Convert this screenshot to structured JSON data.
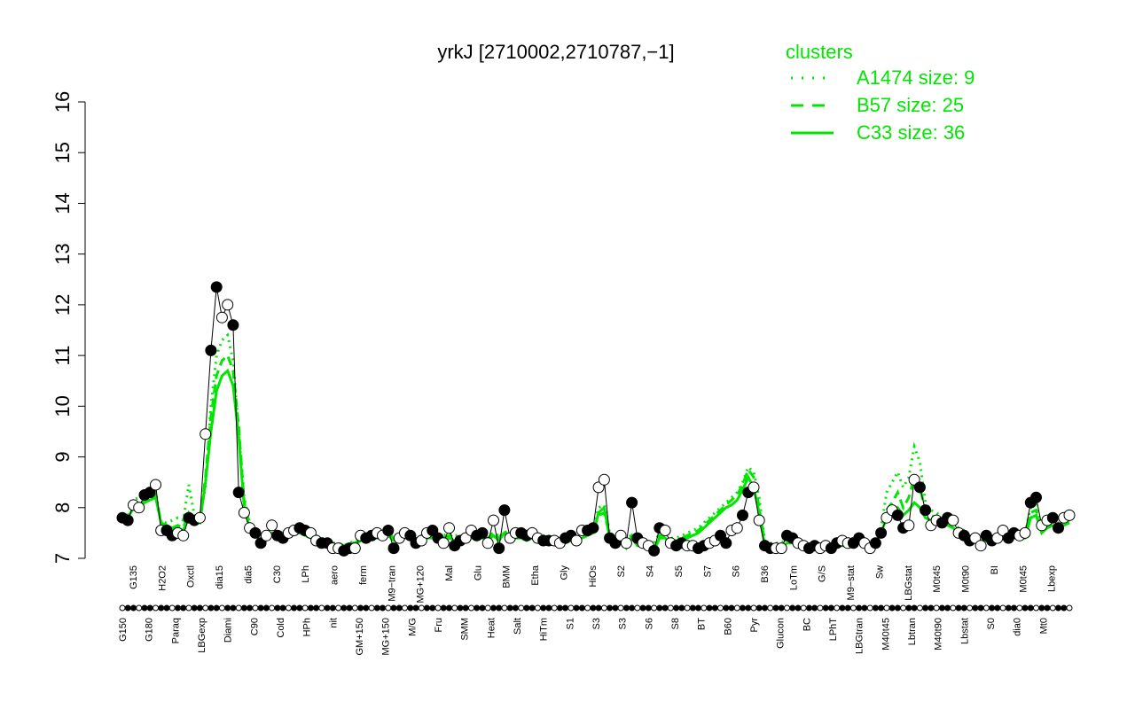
{
  "chart_data": {
    "type": "line",
    "title": "yrkJ [2710002,2710787,−1]",
    "ylim": [
      7,
      16
    ],
    "yticks": [
      "7",
      "8",
      "9",
      "10",
      "11",
      "12",
      "13",
      "14",
      "15",
      "16"
    ],
    "xlabels_top": [
      "G135",
      "H2O2",
      "Oxctl",
      "dia15",
      "dia5",
      "C30",
      "LPh",
      "aero",
      "ferm",
      "M9−tran",
      "MG+120",
      "Mal",
      "Glu",
      "BMM",
      "Etha",
      "Gly",
      "HiOs",
      "S2",
      "S4",
      "S5",
      "S7",
      "S6",
      "B36",
      "LoTm",
      "G/S",
      "M9−stat",
      "Sw",
      "LBGstat",
      "M0t45",
      "M0t90",
      "BI",
      "M0t45",
      "Lbexp"
    ],
    "xlabels_bottom": [
      "G150",
      "G180",
      "Paraq",
      "LBGexp",
      "Diami",
      "C90",
      "Cold",
      "HPh",
      "nit",
      "GM+150",
      "MG+150",
      "M/G",
      "Fru",
      "SMM",
      "Heat",
      "Salt",
      "HiTm",
      "S1",
      "S3",
      "S3",
      "S6",
      "S8",
      "BT",
      "B60",
      "Pyr",
      "Glucon",
      "BC",
      "LPhT",
      "LBGtran",
      "M40t45",
      "Lbtran",
      "M40t90",
      "Lbstat",
      "S0",
      "dia0",
      "Mt0"
    ],
    "points": [
      7.8,
      7.75,
      8.05,
      8.0,
      8.25,
      8.3,
      8.45,
      7.55,
      7.55,
      7.45,
      7.5,
      7.45,
      7.8,
      7.75,
      7.8,
      9.45,
      11.1,
      12.35,
      11.75,
      12.0,
      11.6,
      8.3,
      7.9,
      7.6,
      7.5,
      7.3,
      7.45,
      7.65,
      7.45,
      7.4,
      7.5,
      7.55,
      7.6,
      7.55,
      7.5,
      7.35,
      7.3,
      7.3,
      7.2,
      7.2,
      7.15,
      7.2,
      7.2,
      7.45,
      7.4,
      7.45,
      7.5,
      7.45,
      7.55,
      7.2,
      7.4,
      7.5,
      7.45,
      7.3,
      7.35,
      7.5,
      7.55,
      7.4,
      7.3,
      7.6,
      7.25,
      7.35,
      7.4,
      7.55,
      7.45,
      7.5,
      7.3,
      7.75,
      7.2,
      7.95,
      7.4,
      7.5,
      7.5,
      7.45,
      7.5,
      7.4,
      7.35,
      7.35,
      7.35,
      7.3,
      7.4,
      7.45,
      7.35,
      7.55,
      7.55,
      7.6,
      8.4,
      8.55,
      7.4,
      7.3,
      7.45,
      7.3,
      8.1,
      7.4,
      7.3,
      7.25,
      7.15,
      7.6,
      7.55,
      7.3,
      7.25,
      7.3,
      7.25,
      7.25,
      7.2,
      7.25,
      7.3,
      7.35,
      7.45,
      7.3,
      7.55,
      7.6,
      7.85,
      8.3,
      8.4,
      7.75,
      7.25,
      7.2,
      7.2,
      7.2,
      7.45,
      7.4,
      7.3,
      7.25,
      7.2,
      7.25,
      7.2,
      7.25,
      7.2,
      7.3,
      7.35,
      7.3,
      7.3,
      7.4,
      7.3,
      7.2,
      7.3,
      7.5,
      7.8,
      7.95,
      7.85,
      7.6,
      7.65,
      8.55,
      8.4,
      7.95,
      7.65,
      7.75,
      7.7,
      7.8,
      7.75,
      7.5,
      7.45,
      7.35,
      7.4,
      7.25,
      7.45,
      7.35,
      7.4,
      7.55,
      7.4,
      7.5,
      7.45,
      7.5,
      8.1,
      8.2,
      7.65,
      7.75,
      7.8,
      7.6,
      7.8,
      7.85
    ],
    "series": [
      {
        "name": "A1474 size: 9",
        "style": "dotted",
        "values": [
          7.8,
          7.85,
          8.15,
          8.2,
          8.25,
          8.3,
          8.3,
          7.7,
          7.7,
          7.75,
          7.8,
          7.75,
          8.45,
          7.85,
          7.8,
          8.4,
          10.0,
          11.0,
          11.3,
          11.4,
          10.9,
          9.5,
          8.2,
          7.7,
          7.5,
          7.45,
          7.45,
          7.5,
          7.55,
          7.5,
          7.5,
          7.55,
          7.55,
          7.5,
          7.45,
          7.45,
          7.4,
          7.35,
          7.3,
          7.3,
          7.25,
          7.3,
          7.35,
          7.45,
          7.45,
          7.45,
          7.5,
          7.5,
          7.5,
          7.45,
          7.45,
          7.5,
          7.5,
          7.45,
          7.45,
          7.5,
          7.5,
          7.45,
          7.45,
          7.5,
          7.45,
          7.45,
          7.45,
          7.5,
          7.5,
          7.5,
          7.45,
          7.5,
          7.45,
          7.5,
          7.45,
          7.5,
          7.5,
          7.45,
          7.5,
          7.45,
          7.45,
          7.4,
          7.4,
          7.4,
          7.4,
          7.45,
          7.45,
          7.5,
          7.55,
          7.6,
          8.0,
          8.05,
          7.5,
          7.4,
          7.4,
          7.3,
          7.5,
          7.35,
          7.35,
          7.3,
          7.3,
          7.5,
          7.5,
          7.4,
          7.4,
          7.45,
          7.5,
          7.55,
          7.6,
          7.7,
          7.8,
          7.9,
          8.0,
          8.1,
          8.2,
          8.3,
          8.5,
          8.8,
          8.7,
          8.2,
          7.35,
          7.3,
          7.3,
          7.3,
          7.4,
          7.4,
          7.35,
          7.3,
          7.3,
          7.3,
          7.25,
          7.3,
          7.3,
          7.35,
          7.35,
          7.35,
          7.4,
          7.4,
          7.35,
          7.3,
          7.4,
          7.6,
          8.3,
          8.5,
          8.7,
          8.4,
          8.6,
          9.2,
          8.9,
          8.1,
          7.95,
          7.9,
          7.8,
          7.75,
          7.7,
          7.6,
          7.55,
          7.45,
          7.45,
          7.4,
          7.45,
          7.4,
          7.45,
          7.5,
          7.45,
          7.5,
          7.5,
          7.5,
          8.0,
          8.05,
          7.6,
          7.7,
          7.75,
          7.7,
          7.75,
          7.8
        ]
      },
      {
        "name": "B57 size: 25",
        "style": "dashed",
        "values": [
          7.8,
          7.8,
          8.05,
          8.05,
          8.15,
          8.2,
          8.25,
          7.7,
          7.65,
          7.6,
          7.65,
          7.6,
          7.9,
          7.8,
          7.75,
          8.6,
          9.8,
          10.6,
          10.9,
          11.0,
          10.7,
          9.6,
          8.1,
          7.65,
          7.5,
          7.45,
          7.45,
          7.5,
          7.5,
          7.45,
          7.5,
          7.5,
          7.55,
          7.5,
          7.45,
          7.4,
          7.35,
          7.35,
          7.3,
          7.3,
          7.25,
          7.3,
          7.3,
          7.4,
          7.45,
          7.45,
          7.45,
          7.45,
          7.5,
          7.4,
          7.4,
          7.45,
          7.45,
          7.4,
          7.4,
          7.45,
          7.45,
          7.4,
          7.4,
          7.45,
          7.4,
          7.4,
          7.4,
          7.45,
          7.45,
          7.45,
          7.4,
          7.5,
          7.4,
          7.55,
          7.4,
          7.45,
          7.45,
          7.4,
          7.45,
          7.4,
          7.4,
          7.35,
          7.35,
          7.35,
          7.35,
          7.4,
          7.4,
          7.45,
          7.5,
          7.55,
          7.85,
          7.9,
          7.45,
          7.35,
          7.35,
          7.25,
          7.45,
          7.3,
          7.3,
          7.25,
          7.2,
          7.45,
          7.45,
          7.35,
          7.35,
          7.4,
          7.45,
          7.5,
          7.55,
          7.65,
          7.75,
          7.85,
          7.95,
          8.05,
          8.15,
          8.25,
          8.45,
          8.75,
          8.6,
          8.0,
          7.3,
          7.25,
          7.25,
          7.25,
          7.35,
          7.35,
          7.3,
          7.25,
          7.25,
          7.25,
          7.2,
          7.25,
          7.25,
          7.3,
          7.3,
          7.3,
          7.35,
          7.35,
          7.3,
          7.25,
          7.35,
          7.55,
          7.95,
          8.1,
          8.3,
          8.0,
          8.2,
          8.6,
          8.4,
          7.95,
          7.85,
          7.8,
          7.75,
          7.7,
          7.65,
          7.55,
          7.5,
          7.4,
          7.4,
          7.35,
          7.4,
          7.35,
          7.4,
          7.45,
          7.4,
          7.45,
          7.45,
          7.45,
          7.9,
          7.95,
          7.55,
          7.65,
          7.7,
          7.65,
          7.7,
          7.75
        ]
      },
      {
        "name": "C33 size: 36",
        "style": "solid",
        "values": [
          7.8,
          7.8,
          8.0,
          8.0,
          8.1,
          8.15,
          8.2,
          7.7,
          7.65,
          7.6,
          7.6,
          7.55,
          7.8,
          7.75,
          7.7,
          8.5,
          9.5,
          10.3,
          10.6,
          10.7,
          10.4,
          9.4,
          8.0,
          7.6,
          7.5,
          7.45,
          7.45,
          7.5,
          7.5,
          7.45,
          7.5,
          7.5,
          7.5,
          7.45,
          7.4,
          7.35,
          7.3,
          7.3,
          7.25,
          7.25,
          7.2,
          7.25,
          7.25,
          7.35,
          7.4,
          7.4,
          7.4,
          7.4,
          7.45,
          7.35,
          7.35,
          7.4,
          7.4,
          7.35,
          7.35,
          7.4,
          7.4,
          7.35,
          7.35,
          7.4,
          7.35,
          7.35,
          7.35,
          7.4,
          7.4,
          7.4,
          7.35,
          7.45,
          7.35,
          7.5,
          7.35,
          7.4,
          7.4,
          7.35,
          7.4,
          7.35,
          7.35,
          7.3,
          7.3,
          7.3,
          7.3,
          7.35,
          7.35,
          7.4,
          7.45,
          7.5,
          7.9,
          8.0,
          7.4,
          7.3,
          7.3,
          7.2,
          7.4,
          7.25,
          7.25,
          7.2,
          7.15,
          7.4,
          7.4,
          7.3,
          7.3,
          7.35,
          7.4,
          7.45,
          7.5,
          7.6,
          7.7,
          7.8,
          7.9,
          8.0,
          8.05,
          8.15,
          8.35,
          8.6,
          8.4,
          7.9,
          7.25,
          7.2,
          7.2,
          7.2,
          7.3,
          7.3,
          7.25,
          7.2,
          7.2,
          7.2,
          7.15,
          7.2,
          7.2,
          7.25,
          7.25,
          7.25,
          7.3,
          7.3,
          7.25,
          7.2,
          7.3,
          7.5,
          7.8,
          7.9,
          8.0,
          7.85,
          7.95,
          8.1,
          8.0,
          7.8,
          7.75,
          7.7,
          7.7,
          7.65,
          7.6,
          7.5,
          7.45,
          7.35,
          7.35,
          7.3,
          7.35,
          7.3,
          7.35,
          7.4,
          7.35,
          7.4,
          7.4,
          7.4,
          7.8,
          7.85,
          7.5,
          7.6,
          7.65,
          7.6,
          7.65,
          7.7
        ]
      }
    ],
    "legend": {
      "title": "clusters",
      "placement": "top-right"
    },
    "colors": {
      "series": "#00e600",
      "axis": "#000000"
    },
    "grid": false
  }
}
